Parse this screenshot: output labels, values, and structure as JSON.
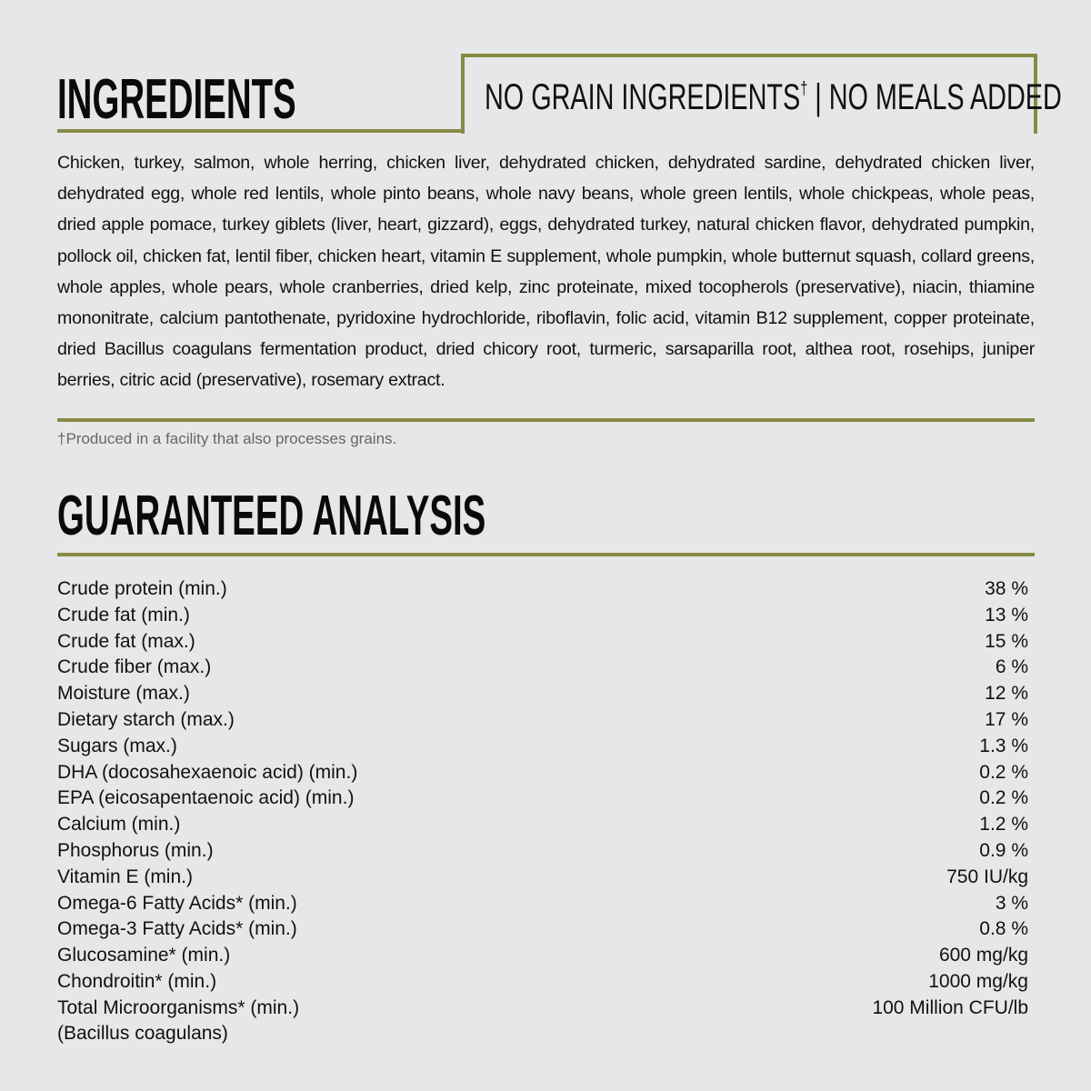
{
  "ingredients": {
    "title": "INGREDIENTS",
    "badge_main": "NO GRAIN INGREDIENTS",
    "badge_mark": "†",
    "badge_rest": " | NO MEALS ADDED",
    "text": "Chicken, turkey, salmon, whole herring, chicken liver, dehydrated chicken, dehydrated sardine, dehydrated chicken liver, dehydrated egg, whole red lentils, whole pinto beans, whole navy beans, whole green lentils, whole chickpeas, whole peas, dried apple pomace, turkey giblets (liver, heart, gizzard), eggs, dehydrated turkey, natural chicken flavor, dehydrated pumpkin, pollock oil, chicken fat, lentil fiber, chicken heart, vitamin E supplement, whole pumpkin, whole butternut squash, collard greens, whole apples, whole pears, whole cranberries, dried kelp, zinc proteinate, mixed tocopherols (preservative), niacin, thiamine mononitrate, calcium pantothenate, pyridoxine hydrochloride, riboflavin, folic acid, vitamin B12 supplement, copper proteinate, dried Bacillus coagulans fermentation product, dried chicory root, turmeric, sarsaparilla root, althea root, rosehips, juniper berries, citric acid (preservative), rosemary extract.",
    "footnote": "†Produced in a facility that also processes grains."
  },
  "analysis": {
    "title": "GUARANTEED ANALYSIS",
    "rows": [
      {
        "label": "Crude protein (min.)",
        "value": "38 %"
      },
      {
        "label": "Crude fat (min.)",
        "value": "13 %"
      },
      {
        "label": "Crude fat (max.)",
        "value": "15 %"
      },
      {
        "label": "Crude fiber (max.)",
        "value": "6 %"
      },
      {
        "label": "Moisture (max.)",
        "value": "12 %"
      },
      {
        "label": "Dietary starch (max.)",
        "value": "17 %"
      },
      {
        "label": "Sugars (max.)",
        "value": "1.3 %"
      },
      {
        "label": "DHA (docosahexaenoic acid) (min.)",
        "value": "0.2 %"
      },
      {
        "label": "EPA (eicosapentaenoic acid) (min.)",
        "value": "0.2 %"
      },
      {
        "label": "Calcium (min.)",
        "value": "1.2 %"
      },
      {
        "label": "Phosphorus (min.)",
        "value": "0.9 %"
      },
      {
        "label": "Vitamin E (min.)",
        "value": "750 IU/kg"
      },
      {
        "label": "Omega-6 Fatty Acids* (min.)",
        "value": "3 %"
      },
      {
        "label": "Omega-3 Fatty Acids* (min.)",
        "value": "0.8 %"
      },
      {
        "label": "Glucosamine* (min.)",
        "value": "600 mg/kg"
      },
      {
        "label": "Chondroitin* (min.)",
        "value": "1000 mg/kg"
      },
      {
        "label": "Total Microorganisms* (min.)",
        "value": "100 Million CFU/lb"
      }
    ],
    "last_sub": "(Bacillus coagulans)"
  },
  "colors": {
    "accent": "#878a45",
    "background": "#e6e7e8"
  }
}
